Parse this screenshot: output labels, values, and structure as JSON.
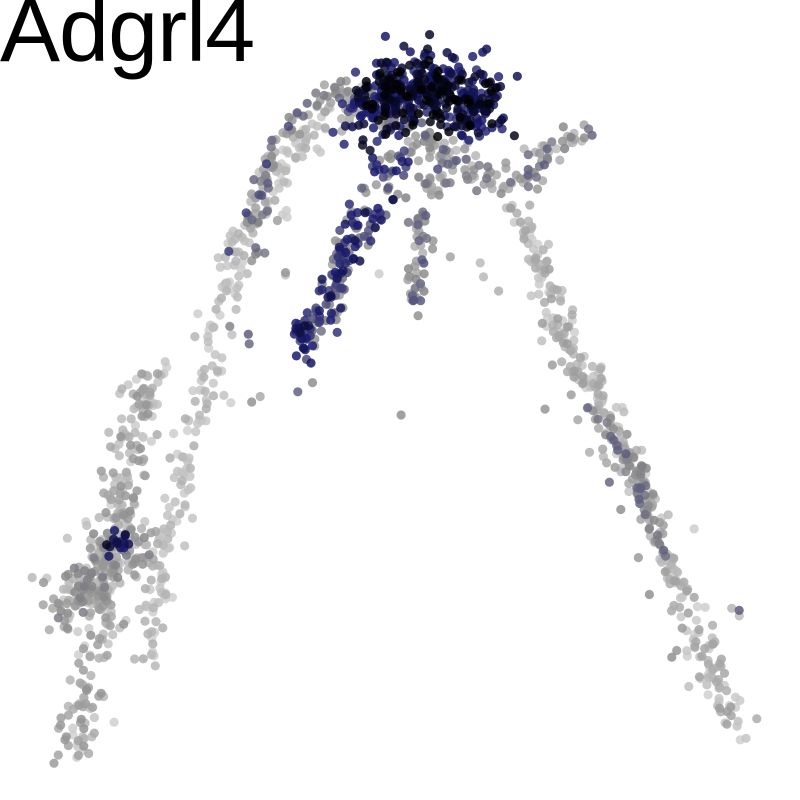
{
  "chart_data": {
    "type": "scatter",
    "title": "Adgrl4",
    "xlabel": "",
    "ylabel": "",
    "axes_visible": false,
    "grid": false,
    "legend": "none",
    "xlim": [
      0,
      100
    ],
    "ylim": [
      0,
      100
    ],
    "color_scale": {
      "low": "#d9d9d9",
      "mid": "#8a8a8a",
      "high_mid": "#1a1a70",
      "high": "#000000",
      "range": [
        0,
        1
      ]
    },
    "point_groups": [
      {
        "name": "left-arm-upper",
        "path": [
          [
            16.5,
            15
          ],
          [
            17.5,
            22
          ],
          [
            19,
            30
          ],
          [
            21,
            38
          ],
          [
            23,
            46
          ],
          [
            25,
            55
          ],
          [
            27,
            64
          ],
          [
            29,
            71
          ],
          [
            32,
            78
          ],
          [
            36,
            83
          ],
          [
            40,
            86
          ],
          [
            45,
            89
          ],
          [
            50,
            90
          ]
        ],
        "spread": 1.0,
        "n": 260,
        "expr": [
          0.05,
          0.25
        ]
      },
      {
        "name": "left-arm-lower",
        "path": [
          [
            7,
            3
          ],
          [
            8,
            8
          ],
          [
            9,
            13
          ],
          [
            10,
            19
          ],
          [
            11,
            24
          ],
          [
            12,
            30
          ],
          [
            13,
            35
          ],
          [
            14,
            40
          ],
          [
            15,
            45
          ],
          [
            16,
            50
          ],
          [
            18,
            54
          ]
        ],
        "spread": 1.4,
        "n": 260,
        "expr": [
          0.05,
          0.4
        ]
      },
      {
        "name": "left-base-cluster",
        "path": [
          [
            6,
            22
          ],
          [
            8,
            25
          ],
          [
            10,
            27
          ],
          [
            12,
            30
          ],
          [
            14,
            31
          ],
          [
            16,
            32
          ]
        ],
        "spread": 2.0,
        "n": 180,
        "expr": [
          0.1,
          0.5
        ]
      },
      {
        "name": "left-mid-hot",
        "path": [
          [
            12,
            30
          ],
          [
            13,
            31
          ],
          [
            14,
            31.5
          ]
        ],
        "spread": 0.6,
        "n": 14,
        "expr": [
          0.8,
          0.95
        ]
      },
      {
        "name": "left-inner-branch",
        "path": [
          [
            30,
            68
          ],
          [
            31,
            74
          ],
          [
            32,
            79
          ],
          [
            34,
            84
          ],
          [
            37,
            88
          ],
          [
            40,
            89.5
          ]
        ],
        "spread": 0.8,
        "n": 60,
        "expr": [
          0.2,
          0.75
        ]
      },
      {
        "name": "top-hotspot",
        "path": [
          [
            46,
            88
          ],
          [
            49,
            90
          ],
          [
            52,
            92
          ],
          [
            55,
            91.5
          ],
          [
            58,
            89.5
          ],
          [
            61,
            87.5
          ]
        ],
        "spread": 2.2,
        "n": 420,
        "expr": [
          0.72,
          1.0
        ]
      },
      {
        "name": "top-shoulder",
        "path": [
          [
            40,
            90
          ],
          [
            44,
            90.5
          ],
          [
            47,
            89
          ],
          [
            50,
            86
          ],
          [
            53,
            84
          ],
          [
            57,
            82
          ],
          [
            62,
            79
          ],
          [
            66,
            79
          ],
          [
            70,
            83
          ],
          [
            74,
            85.5
          ]
        ],
        "spread": 1.3,
        "n": 180,
        "expr": [
          0.15,
          0.6
        ]
      },
      {
        "name": "center-branch-1",
        "path": [
          [
            41,
            60
          ],
          [
            42,
            66
          ],
          [
            43,
            72
          ],
          [
            45,
            77
          ],
          [
            48,
            80
          ],
          [
            51,
            82
          ]
        ],
        "spread": 0.8,
        "n": 90,
        "expr": [
          0.3,
          0.85
        ]
      },
      {
        "name": "center-branch-2",
        "path": [
          [
            37,
            56
          ],
          [
            38,
            59
          ],
          [
            40,
            62
          ],
          [
            42,
            66
          ],
          [
            44,
            70
          ],
          [
            47,
            75
          ],
          [
            50,
            78
          ]
        ],
        "spread": 0.8,
        "n": 80,
        "expr": [
          0.35,
          0.9
        ]
      },
      {
        "name": "center-branch-3",
        "path": [
          [
            51.5,
            62
          ],
          [
            52,
            66
          ],
          [
            52.5,
            70
          ],
          [
            53,
            74
          ],
          [
            54,
            78
          ],
          [
            56,
            81
          ]
        ],
        "spread": 0.8,
        "n": 70,
        "expr": [
          0.2,
          0.65
        ]
      },
      {
        "name": "center-small-1",
        "path": [
          [
            36.5,
            58
          ],
          [
            37,
            59.5
          ],
          [
            38,
            61
          ]
        ],
        "spread": 0.6,
        "n": 20,
        "expr": [
          0.55,
          0.9
        ]
      },
      {
        "name": "right-arm",
        "path": [
          [
            66,
            76
          ],
          [
            67,
            72
          ],
          [
            69,
            66
          ],
          [
            71,
            60
          ],
          [
            73,
            55
          ],
          [
            76,
            50
          ],
          [
            78,
            46
          ],
          [
            80,
            42
          ],
          [
            82,
            38
          ],
          [
            84,
            33
          ],
          [
            86,
            28
          ],
          [
            88,
            22
          ],
          [
            90,
            17
          ],
          [
            92,
            13
          ],
          [
            94,
            9
          ],
          [
            95.5,
            7
          ]
        ],
        "spread": 1.1,
        "n": 320,
        "expr": [
          0.05,
          0.35
        ]
      },
      {
        "name": "right-arm-inner",
        "path": [
          [
            75,
            49
          ],
          [
            77,
            47
          ],
          [
            79,
            44
          ],
          [
            81,
            40
          ],
          [
            83,
            35
          ],
          [
            85,
            29
          ]
        ],
        "spread": 0.6,
        "n": 60,
        "expr": [
          0.4,
          0.6
        ]
      },
      {
        "name": "outliers",
        "path": [
          [
            26.5,
            60
          ],
          [
            27.5,
            59.5
          ],
          [
            41,
            51
          ],
          [
            26.5,
            49.5
          ],
          [
            67,
            47.5
          ],
          [
            72.5,
            49.5
          ],
          [
            87.5,
            15
          ],
          [
            95,
            23
          ],
          [
            59.5,
            68.5
          ],
          [
            37,
            64
          ],
          [
            33,
            69
          ],
          [
            30,
            71
          ],
          [
            37,
            76
          ]
        ],
        "spread": 0.5,
        "n": 40,
        "expr": [
          0.05,
          0.6
        ]
      }
    ]
  }
}
